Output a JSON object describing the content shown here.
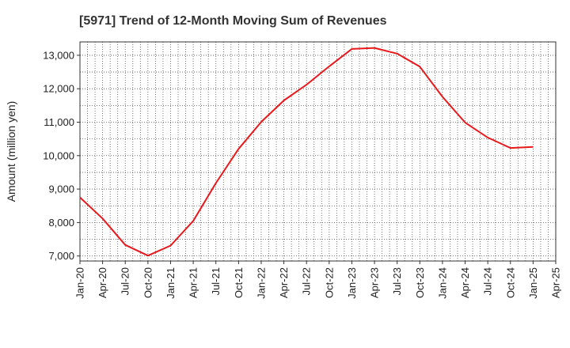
{
  "chart_data": {
    "type": "line",
    "title": "[5971]  Trend of 12-Month Moving Sum of Revenues",
    "xlabel": "",
    "ylabel": "Amount (million yen)",
    "ylim": [
      6850,
      13400
    ],
    "yticks": [
      7000,
      8000,
      9000,
      10000,
      11000,
      12000,
      13000
    ],
    "ytick_labels": [
      "7,000",
      "8,000",
      "9,000",
      "10,000",
      "11,000",
      "12,000",
      "13,000"
    ],
    "xticks": [
      "Jan-20",
      "Apr-20",
      "Jul-20",
      "Oct-20",
      "Jan-21",
      "Apr-21",
      "Jul-21",
      "Oct-21",
      "Jan-22",
      "Apr-22",
      "Jul-22",
      "Oct-22",
      "Jan-23",
      "Apr-23",
      "Jul-23",
      "Oct-23",
      "Jan-24",
      "Apr-24",
      "Jul-24",
      "Oct-24",
      "Jan-25",
      "Apr-25"
    ],
    "grid": true,
    "line_color": "#e8191c",
    "series": [
      {
        "x": [
          "Jan-20",
          "Apr-20",
          "Jul-20",
          "Oct-20",
          "Jan-21",
          "Apr-21",
          "Jul-21",
          "Oct-21",
          "Jan-22",
          "Apr-22",
          "Jul-22",
          "Oct-22",
          "Jan-23",
          "Apr-23",
          "Jul-23",
          "Oct-23",
          "Jan-24",
          "Apr-24",
          "Jul-24",
          "Oct-24",
          "Jan-25"
        ],
        "values": [
          8750,
          8120,
          7330,
          7010,
          7310,
          8050,
          9180,
          10200,
          11010,
          11650,
          12120,
          12670,
          13190,
          13220,
          13050,
          12660,
          11760,
          10990,
          10540,
          10230,
          10260
        ]
      }
    ]
  }
}
